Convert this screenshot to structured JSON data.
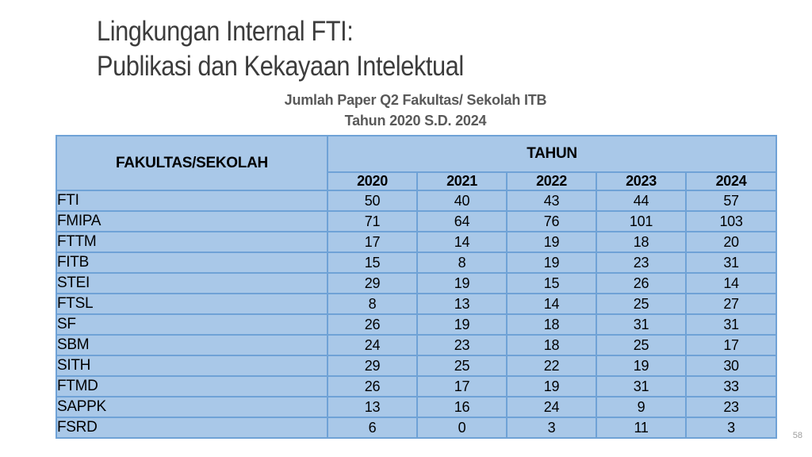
{
  "slide": {
    "title_line1": "Lingkungan Internal FTI:",
    "title_line2": "Publikasi dan Kekayaan Intelektual",
    "page_number": "58"
  },
  "table": {
    "caption_line1": "Jumlah Paper Q2 Fakultas/ Sekolah ITB",
    "caption_line2": "Tahun 2020 S.D. 2024",
    "row_header": "FAKULTAS/SEKOLAH",
    "col_group_header": "TAHUN",
    "years": [
      "2020",
      "2021",
      "2022",
      "2023",
      "2024"
    ],
    "rows": [
      {
        "label": "FTI",
        "values": [
          50,
          40,
          43,
          44,
          57
        ]
      },
      {
        "label": "FMIPA",
        "values": [
          71,
          64,
          76,
          101,
          103
        ]
      },
      {
        "label": "FTTM",
        "values": [
          17,
          14,
          19,
          18,
          20
        ]
      },
      {
        "label": "FITB",
        "values": [
          15,
          8,
          19,
          23,
          31
        ]
      },
      {
        "label": "STEI",
        "values": [
          29,
          19,
          15,
          26,
          14
        ]
      },
      {
        "label": "FTSL",
        "values": [
          8,
          13,
          14,
          25,
          27
        ]
      },
      {
        "label": "SF",
        "values": [
          26,
          19,
          18,
          31,
          31
        ]
      },
      {
        "label": "SBM",
        "values": [
          24,
          23,
          18,
          25,
          17
        ]
      },
      {
        "label": "SITH",
        "values": [
          29,
          25,
          22,
          19,
          30
        ]
      },
      {
        "label": "FTMD",
        "values": [
          26,
          17,
          19,
          31,
          33
        ]
      },
      {
        "label": "SAPPK",
        "values": [
          13,
          16,
          24,
          9,
          23
        ]
      },
      {
        "label": "FSRD",
        "values": [
          6,
          0,
          3,
          11,
          3
        ]
      }
    ]
  },
  "colors": {
    "table_fill": "#a9c8e8",
    "table_border": "#6fa2d6",
    "title_text": "#3c3c3c",
    "subtitle_text": "#595959",
    "page_number_text": "#9e9e9e"
  }
}
